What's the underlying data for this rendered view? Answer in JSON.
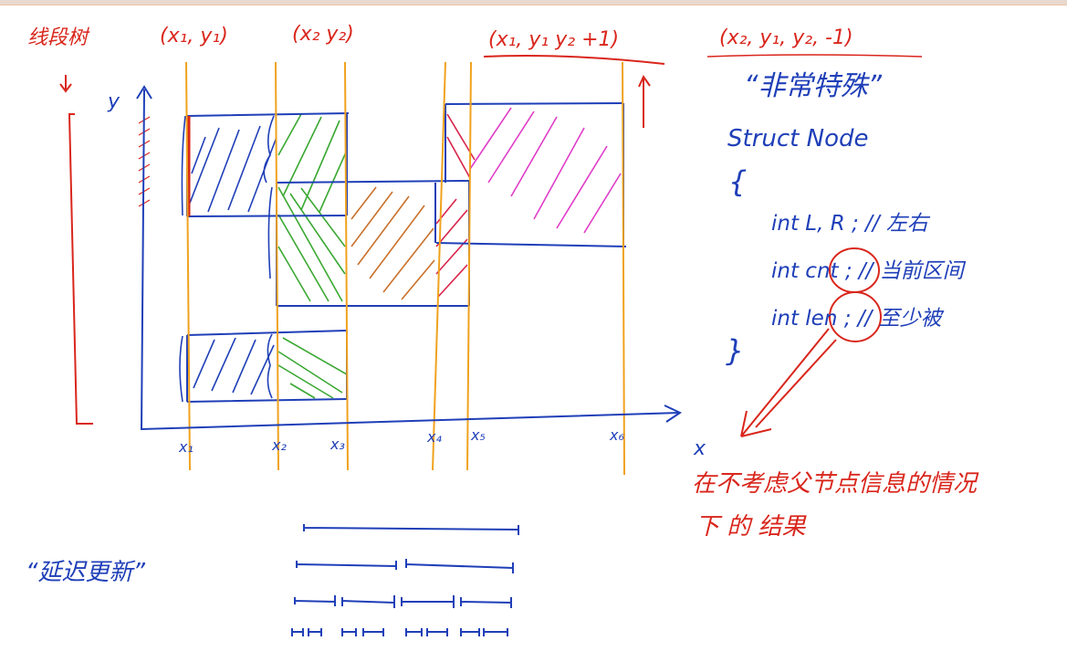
{
  "colors": {
    "ink_blue": "#1f3fb8",
    "ink_red": "#d9261c",
    "scanline_orange": "#f0a21e",
    "hatch_green": "#3aa832",
    "hatch_brown": "#c9702a",
    "hatch_magenta": "#e03cc8",
    "hatch_crimson": "#d8244a"
  },
  "labels": {
    "scanline_tree": "线段树",
    "tuple_1": "(x₁, y₁)",
    "tuple_2": "(x₂ y₂)",
    "tuple_3": "(x₁, y₁ y₂ +1)",
    "tuple_4": "(x₂, y₁, y₂, -1)",
    "axis_y": "y",
    "axis_x": "x",
    "lazy_update": "“延迟更新”",
    "very_special": "“非常特殊”",
    "struct_head": "Struct Node",
    "brace_open": "{",
    "brace_close": "}",
    "field_1": "int  L, R ;  // 左右",
    "field_2": "int  cnt ;  // 当前区间",
    "field_3": "int  len ;  // 至少被",
    "note_line1": "在不考虑父节点信息的情况",
    "note_line2": "下 的 结果",
    "x_ticks": [
      "x₁",
      "x₂",
      "x₃",
      "x₄",
      "x₅",
      "x₆"
    ]
  }
}
